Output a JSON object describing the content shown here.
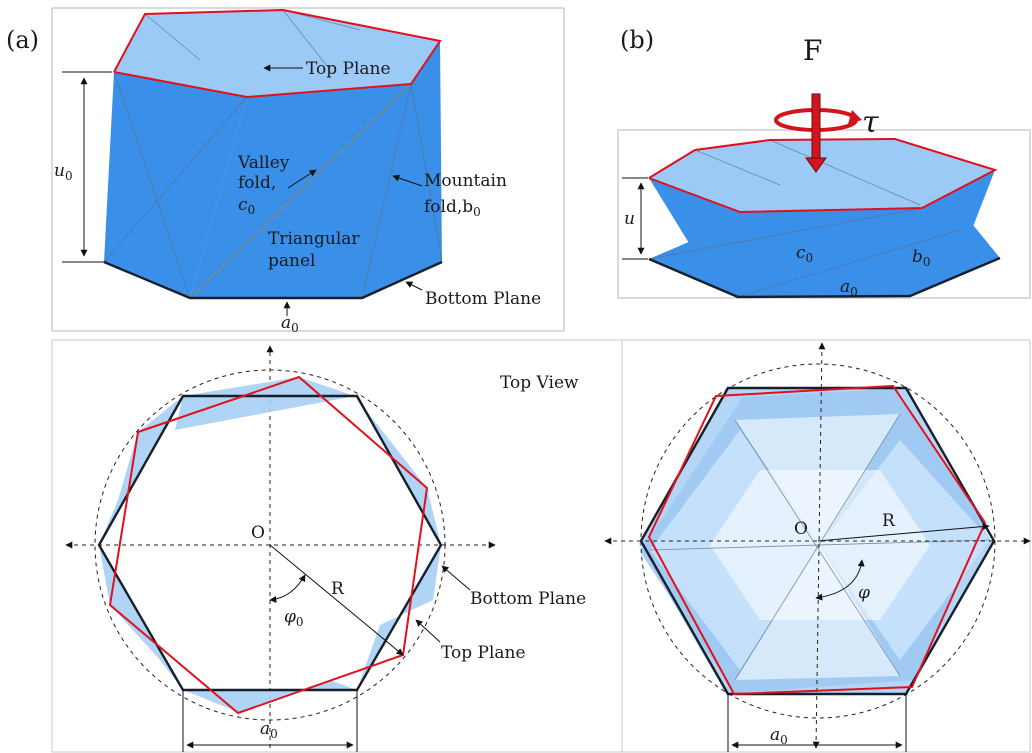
{
  "panel_a": {
    "tag": "(a)",
    "top_plane": "Top Plane",
    "valley_1": "Valley",
    "valley_2": "fold,",
    "valley_var": "c",
    "mountain_1": "Mountain",
    "mountain_2": "fold,b",
    "triangular_1": "Triangular",
    "triangular_2": "panel",
    "bottom_plane": "Bottom Plane",
    "height_var": "u",
    "edge_var": "a",
    "sub": "0"
  },
  "panel_b": {
    "tag": "(b)",
    "force": "F",
    "torque": "τ",
    "height_var": "u",
    "c_var": "c",
    "b_var": "b",
    "a_var": "a",
    "sub": "0"
  },
  "top_view_left": {
    "title": "Top View",
    "origin": "O",
    "radius": "R",
    "angle_var": "φ",
    "sub": "0",
    "bottom_plane": "Bottom Plane",
    "top_plane": "Top Plane",
    "edge_var": "a"
  },
  "top_view_right": {
    "origin": "O",
    "radius": "R",
    "angle_var": "φ",
    "edge_var": "a",
    "sub": "0"
  },
  "colors": {
    "panel_blue": "#3a8fe8",
    "light_blue": "#9ccaf6",
    "top_edge_red": "#e2101c",
    "bottom_edge_black": "#16202c",
    "arrow_red": "#d4141c"
  }
}
